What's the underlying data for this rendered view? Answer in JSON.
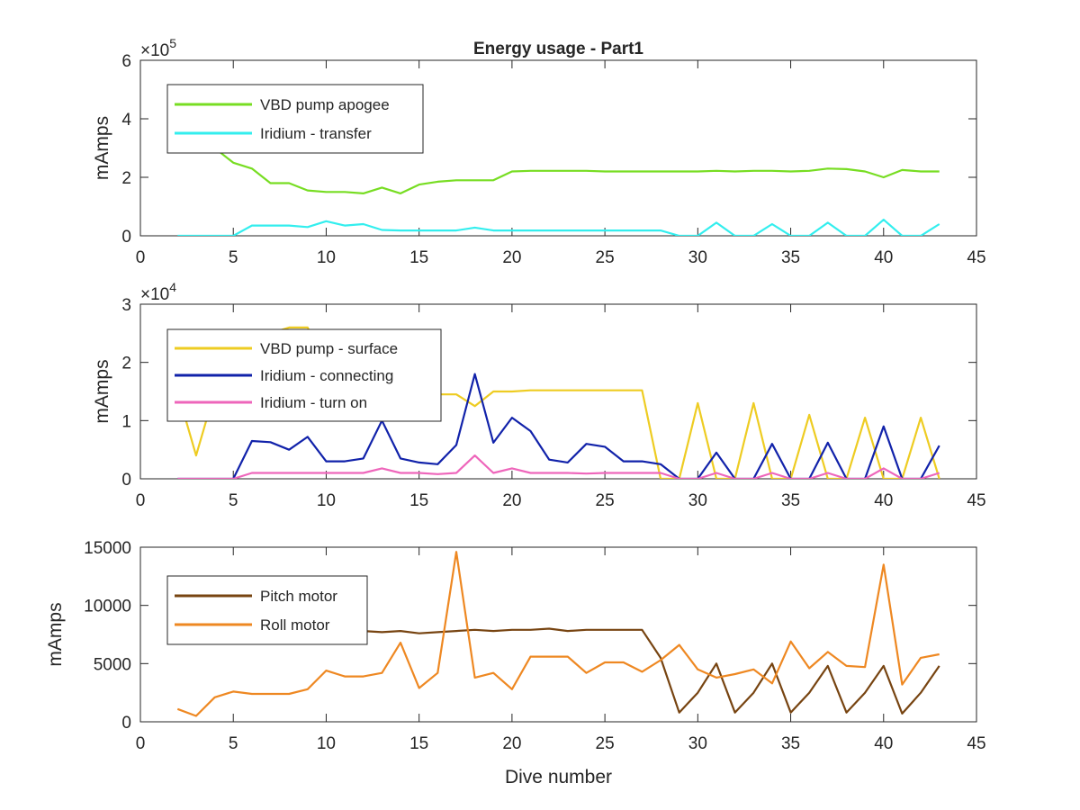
{
  "chart_data": [
    {
      "type": "line",
      "title": "Energy usage - Part1",
      "xlabel": "",
      "ylabel": "mAmps",
      "xlim": [
        0,
        45
      ],
      "ylim": [
        0,
        600000
      ],
      "exponent_label": "×10",
      "exponent": "5",
      "xticks": [
        "0",
        "5",
        "10",
        "15",
        "20",
        "25",
        "30",
        "35",
        "40",
        "45"
      ],
      "yticks": [
        {
          "value": 0,
          "label": "0"
        },
        {
          "value": 200000,
          "label": "2"
        },
        {
          "value": 400000,
          "label": "4"
        },
        {
          "value": 600000,
          "label": "6"
        }
      ],
      "legend_position": "top-left",
      "series": [
        {
          "name": "VBD pump apogee",
          "color": "#77dd22",
          "x": [
            2,
            3,
            4,
            5,
            6,
            7,
            8,
            9,
            10,
            11,
            12,
            13,
            14,
            15,
            16,
            17,
            18,
            19,
            20,
            21,
            22,
            23,
            24,
            25,
            26,
            27,
            28,
            29,
            30,
            31,
            32,
            33,
            34,
            35,
            36,
            37,
            38,
            39,
            40,
            41,
            42,
            43
          ],
          "y": [
            420000,
            400000,
            300000,
            250000,
            230000,
            180000,
            180000,
            155000,
            150000,
            150000,
            145000,
            165000,
            145000,
            175000,
            185000,
            190000,
            190000,
            190000,
            220000,
            222000,
            222000,
            222000,
            222000,
            220000,
            220000,
            220000,
            220000,
            220000,
            220000,
            222000,
            220000,
            222000,
            222000,
            220000,
            222000,
            230000,
            228000,
            220000,
            200000,
            225000,
            220000,
            220000
          ]
        },
        {
          "name": "Iridium - transfer",
          "color": "#33eeee",
          "x": [
            2,
            3,
            4,
            5,
            6,
            7,
            8,
            9,
            10,
            11,
            12,
            13,
            14,
            15,
            16,
            17,
            18,
            19,
            20,
            21,
            22,
            23,
            24,
            25,
            26,
            27,
            28,
            29,
            30,
            31,
            32,
            33,
            34,
            35,
            36,
            37,
            38,
            39,
            40,
            41,
            42,
            43
          ],
          "y": [
            0,
            0,
            0,
            0,
            35000,
            35000,
            35000,
            30000,
            50000,
            35000,
            40000,
            20000,
            18000,
            18000,
            18000,
            18000,
            28000,
            18000,
            18000,
            18000,
            18000,
            18000,
            18000,
            18000,
            18000,
            18000,
            18000,
            0,
            0,
            45000,
            0,
            0,
            40000,
            0,
            0,
            45000,
            0,
            0,
            55000,
            0,
            0,
            40000
          ]
        }
      ]
    },
    {
      "type": "line",
      "title": "",
      "xlabel": "",
      "ylabel": "mAmps",
      "xlim": [
        0,
        45
      ],
      "ylim": [
        0,
        30000
      ],
      "exponent_label": "×10",
      "exponent": "4",
      "xticks": [
        "0",
        "5",
        "10",
        "15",
        "20",
        "25",
        "30",
        "35",
        "40",
        "45"
      ],
      "yticks": [
        {
          "value": 0,
          "label": "0"
        },
        {
          "value": 10000,
          "label": "1"
        },
        {
          "value": 20000,
          "label": "2"
        },
        {
          "value": 30000,
          "label": "3"
        }
      ],
      "legend_position": "top-left",
      "series": [
        {
          "name": "VBD pump - surface",
          "color": "#eecc22",
          "x": [
            2,
            3,
            4,
            5,
            6,
            7,
            8,
            9,
            10,
            11,
            12,
            13,
            14,
            15,
            16,
            17,
            18,
            19,
            20,
            21,
            22,
            23,
            24,
            25,
            26,
            27,
            28,
            29,
            30,
            31,
            32,
            33,
            34,
            35,
            36,
            37,
            38,
            39,
            40,
            41,
            42,
            43
          ],
          "y": [
            15000,
            4000,
            15000,
            15000,
            24000,
            25000,
            26000,
            26000,
            20000,
            18000,
            16000,
            15000,
            15000,
            14500,
            14500,
            14500,
            12500,
            15000,
            15000,
            15200,
            15200,
            15200,
            15200,
            15200,
            15200,
            15200,
            0,
            0,
            13000,
            0,
            0,
            13000,
            0,
            0,
            11000,
            0,
            0,
            10500,
            0,
            0,
            10500,
            0
          ]
        },
        {
          "name": "Iridium - connecting",
          "color": "#1122aa",
          "x": [
            2,
            3,
            4,
            5,
            6,
            7,
            8,
            9,
            10,
            11,
            12,
            13,
            14,
            15,
            16,
            17,
            18,
            19,
            20,
            21,
            22,
            23,
            24,
            25,
            26,
            27,
            28,
            29,
            30,
            31,
            32,
            33,
            34,
            35,
            36,
            37,
            38,
            39,
            40,
            41,
            42,
            43
          ],
          "y": [
            0,
            0,
            0,
            0,
            6500,
            6300,
            5000,
            7200,
            3000,
            3000,
            3500,
            10000,
            3500,
            2800,
            2500,
            5800,
            18000,
            6200,
            10500,
            8200,
            3300,
            2800,
            6000,
            5500,
            3000,
            3000,
            2500,
            0,
            0,
            4500,
            0,
            0,
            6000,
            0,
            0,
            6200,
            0,
            0,
            9000,
            0,
            0,
            5700
          ]
        },
        {
          "name": "Iridium - turn on",
          "color": "#ee66bb",
          "x": [
            2,
            3,
            4,
            5,
            6,
            7,
            8,
            9,
            10,
            11,
            12,
            13,
            14,
            15,
            16,
            17,
            18,
            19,
            20,
            21,
            22,
            23,
            24,
            25,
            26,
            27,
            28,
            29,
            30,
            31,
            32,
            33,
            34,
            35,
            36,
            37,
            38,
            39,
            40,
            41,
            42,
            43
          ],
          "y": [
            0,
            0,
            0,
            0,
            1000,
            1000,
            1000,
            1000,
            1000,
            1000,
            1000,
            1800,
            1000,
            1000,
            800,
            1000,
            4000,
            1000,
            1800,
            1000,
            1000,
            1000,
            900,
            1000,
            1000,
            1000,
            1000,
            0,
            0,
            1000,
            0,
            0,
            1000,
            0,
            0,
            1000,
            0,
            0,
            1800,
            0,
            0,
            1000
          ]
        }
      ]
    },
    {
      "type": "line",
      "title": "",
      "xlabel": "Dive number",
      "ylabel": "mAmps",
      "xlim": [
        0,
        45
      ],
      "ylim": [
        0,
        15000
      ],
      "exponent_label": "",
      "exponent": "",
      "xticks": [
        "0",
        "5",
        "10",
        "15",
        "20",
        "25",
        "30",
        "35",
        "40",
        "45"
      ],
      "yticks": [
        {
          "value": 0,
          "label": "0"
        },
        {
          "value": 5000,
          "label": "5000"
        },
        {
          "value": 10000,
          "label": "10000"
        },
        {
          "value": 15000,
          "label": "15000"
        }
      ],
      "legend_position": "top-left",
      "series": [
        {
          "name": "Pitch motor",
          "color": "#774411",
          "x": [
            2,
            3,
            4,
            5,
            6,
            7,
            8,
            9,
            10,
            11,
            12,
            13,
            14,
            15,
            16,
            17,
            18,
            19,
            20,
            21,
            22,
            23,
            24,
            25,
            26,
            27,
            28,
            29,
            30,
            31,
            32,
            33,
            34,
            35,
            36,
            37,
            38,
            39,
            40,
            41,
            42,
            43
          ],
          "y": [
            7800,
            7800,
            7800,
            7800,
            7800,
            7800,
            7800,
            7800,
            7800,
            7800,
            7800,
            7700,
            7800,
            7600,
            7700,
            7800,
            7900,
            7800,
            7900,
            7900,
            8000,
            7800,
            7900,
            7900,
            7900,
            7900,
            5500,
            800,
            2500,
            5000,
            800,
            2500,
            5000,
            800,
            2500,
            4800,
            800,
            2500,
            4800,
            700,
            2500,
            4800
          ]
        },
        {
          "name": "Roll motor",
          "color": "#ee8822",
          "x": [
            2,
            3,
            4,
            5,
            6,
            7,
            8,
            9,
            10,
            11,
            12,
            13,
            14,
            15,
            16,
            17,
            18,
            19,
            20,
            21,
            22,
            23,
            24,
            25,
            26,
            27,
            28,
            29,
            30,
            31,
            32,
            33,
            34,
            35,
            36,
            37,
            38,
            39,
            40,
            41,
            42,
            43
          ],
          "y": [
            1100,
            500,
            2100,
            2600,
            2400,
            2400,
            2400,
            2800,
            4400,
            3900,
            3900,
            4200,
            6800,
            2900,
            4200,
            14600,
            3800,
            4200,
            2800,
            5600,
            5600,
            5600,
            4200,
            5100,
            5100,
            4300,
            5300,
            6600,
            4500,
            3800,
            4100,
            4500,
            3300,
            6900,
            4600,
            6000,
            4800,
            4700,
            13500,
            3200,
            5500,
            5800
          ]
        }
      ]
    }
  ]
}
